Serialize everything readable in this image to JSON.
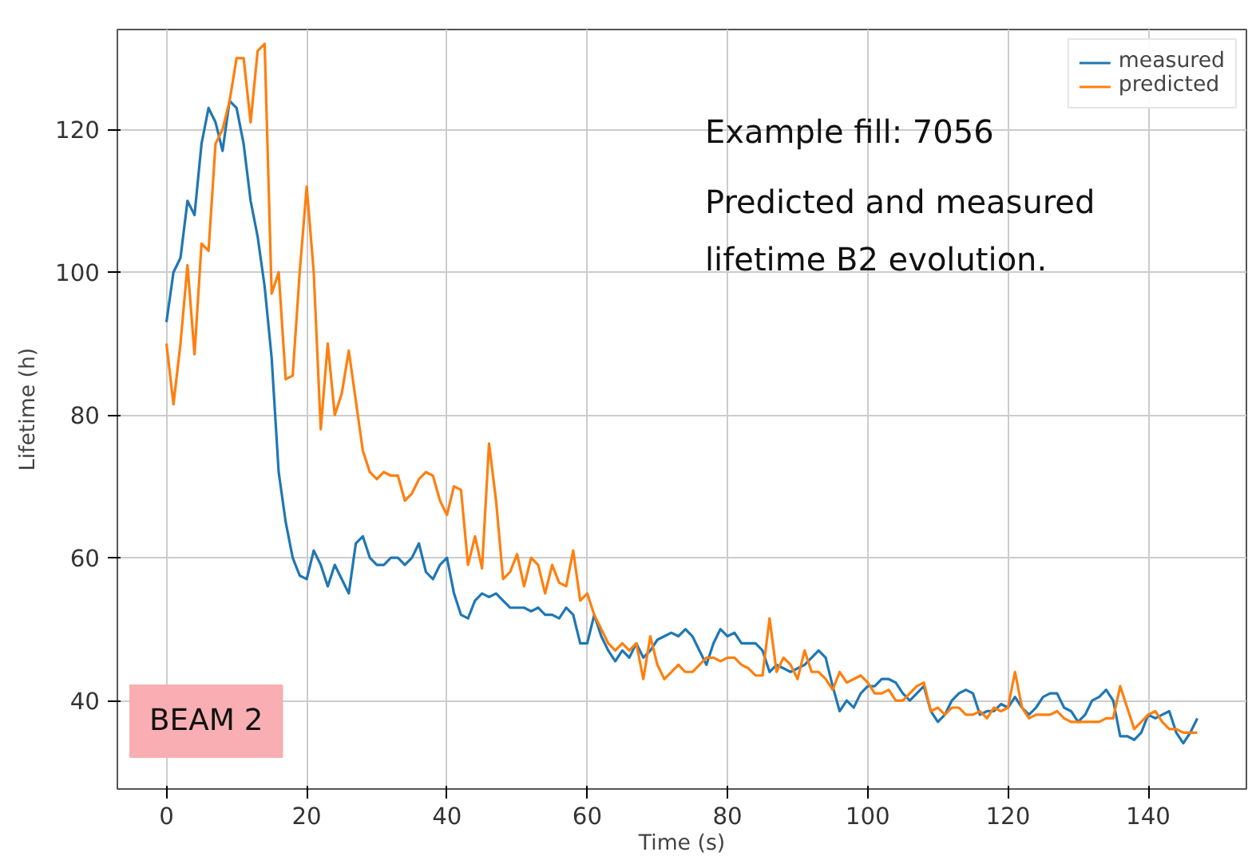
{
  "chart_data": {
    "type": "line",
    "xlabel": "Time (s)",
    "ylabel": "Lifetime (h)",
    "x": [
      0,
      1,
      2,
      3,
      4,
      5,
      6,
      7,
      8,
      9,
      10,
      11,
      12,
      13,
      14,
      15,
      16,
      17,
      18,
      19,
      20,
      21,
      22,
      23,
      24,
      25,
      26,
      27,
      28,
      29,
      30,
      31,
      32,
      33,
      34,
      35,
      36,
      37,
      38,
      39,
      40,
      41,
      42,
      43,
      44,
      45,
      46,
      47,
      48,
      49,
      50,
      51,
      52,
      53,
      54,
      55,
      56,
      57,
      58,
      59,
      60,
      61,
      62,
      63,
      64,
      65,
      66,
      67,
      68,
      69,
      70,
      71,
      72,
      73,
      74,
      75,
      76,
      77,
      78,
      79,
      80,
      81,
      82,
      83,
      84,
      85,
      86,
      87,
      88,
      89,
      90,
      91,
      92,
      93,
      94,
      95,
      96,
      97,
      98,
      99,
      100,
      101,
      102,
      103,
      104,
      105,
      106,
      107,
      108,
      109,
      110,
      111,
      112,
      113,
      114,
      115,
      116,
      117,
      118,
      119,
      120,
      121,
      122,
      123,
      124,
      125,
      126,
      127,
      128,
      129,
      130,
      131,
      132,
      133,
      134,
      135,
      136,
      137,
      138,
      139,
      140,
      141,
      142,
      143,
      144,
      145,
      146,
      147
    ],
    "series": [
      {
        "name": "measured",
        "color": "#1f77b4",
        "values": [
          93,
          100,
          102,
          110,
          108,
          118,
          123,
          121,
          117,
          124,
          123,
          118,
          110,
          105,
          98,
          88,
          72,
          65,
          60,
          57.5,
          57,
          61,
          59,
          56,
          59,
          57,
          55,
          62,
          63,
          60,
          59,
          59,
          60,
          60,
          59,
          60,
          62,
          58,
          57,
          59,
          60,
          55,
          52,
          51.5,
          54,
          55,
          54.5,
          55,
          54,
          53,
          53,
          53,
          52.5,
          53,
          52,
          52,
          51.5,
          53,
          52,
          48,
          48,
          52,
          49,
          47,
          45.5,
          47,
          46,
          48,
          46,
          47,
          48.5,
          49,
          49.5,
          49,
          50,
          49,
          47,
          45,
          48,
          50,
          49,
          49.5,
          48,
          48,
          48,
          47,
          44,
          45,
          44.5,
          44,
          44.5,
          45,
          46,
          47,
          46,
          42,
          38.5,
          40,
          39,
          41,
          42,
          42,
          43,
          43,
          42.5,
          41,
          40,
          41,
          42,
          38.5,
          37,
          38,
          40,
          41,
          41.5,
          41,
          38,
          38.5,
          38.5,
          39.5,
          39,
          40.5,
          39,
          38,
          39,
          40.5,
          41,
          41,
          39,
          38.5,
          37,
          38,
          40,
          40.5,
          41.5,
          40,
          35,
          35,
          34.5,
          35.5,
          38,
          37.5,
          38,
          38.5,
          35.5,
          34,
          35.5,
          37.5
        ]
      },
      {
        "name": "predicted",
        "color": "#ff7f0e",
        "values": [
          90,
          81.5,
          90,
          101,
          88.5,
          104,
          103,
          118,
          120,
          124,
          130,
          130,
          121,
          131,
          132,
          97,
          100,
          85,
          85.5,
          100,
          112,
          100,
          78,
          90,
          80,
          83,
          89,
          82,
          75,
          72,
          71,
          72,
          71.5,
          71.5,
          68,
          69,
          71,
          72,
          71.5,
          68,
          66,
          70,
          69.5,
          59,
          63,
          58.5,
          76,
          68,
          57,
          58,
          60.5,
          56,
          60,
          59,
          55,
          59,
          56.5,
          56,
          61,
          54,
          55,
          52,
          50,
          48,
          47,
          48,
          47,
          48,
          43,
          49,
          45,
          43,
          44,
          45,
          44,
          44,
          45,
          46,
          46,
          45.5,
          46,
          46,
          45,
          44.5,
          43.5,
          43.5,
          51.5,
          44,
          46,
          45,
          43,
          47,
          44,
          44,
          43,
          41.5,
          44,
          42.5,
          43,
          43.5,
          42.5,
          41,
          41,
          41.5,
          40,
          40,
          41,
          42,
          42.5,
          38.5,
          39,
          38,
          39,
          39,
          38,
          38,
          38.5,
          37.5,
          39,
          38.5,
          39,
          44,
          39,
          37.5,
          38,
          38,
          38,
          38.5,
          37.5,
          37,
          37,
          37,
          37,
          37,
          37.5,
          37.5,
          42,
          39,
          36,
          37,
          38,
          38.5,
          37,
          36,
          36,
          35.5,
          35.5,
          35.5
        ]
      }
    ],
    "xlim": [
      -7,
      154
    ],
    "ylim": [
      27.6,
      134
    ],
    "xticks": [
      0,
      20,
      40,
      60,
      80,
      100,
      120,
      140
    ],
    "yticks": [
      40,
      60,
      80,
      100,
      120
    ],
    "grid": true,
    "legend": "top right",
    "annotations": [
      "Example fill: 7056",
      "Predicted and measured lifetime B2 evolution.",
      "BEAM 2"
    ]
  }
}
